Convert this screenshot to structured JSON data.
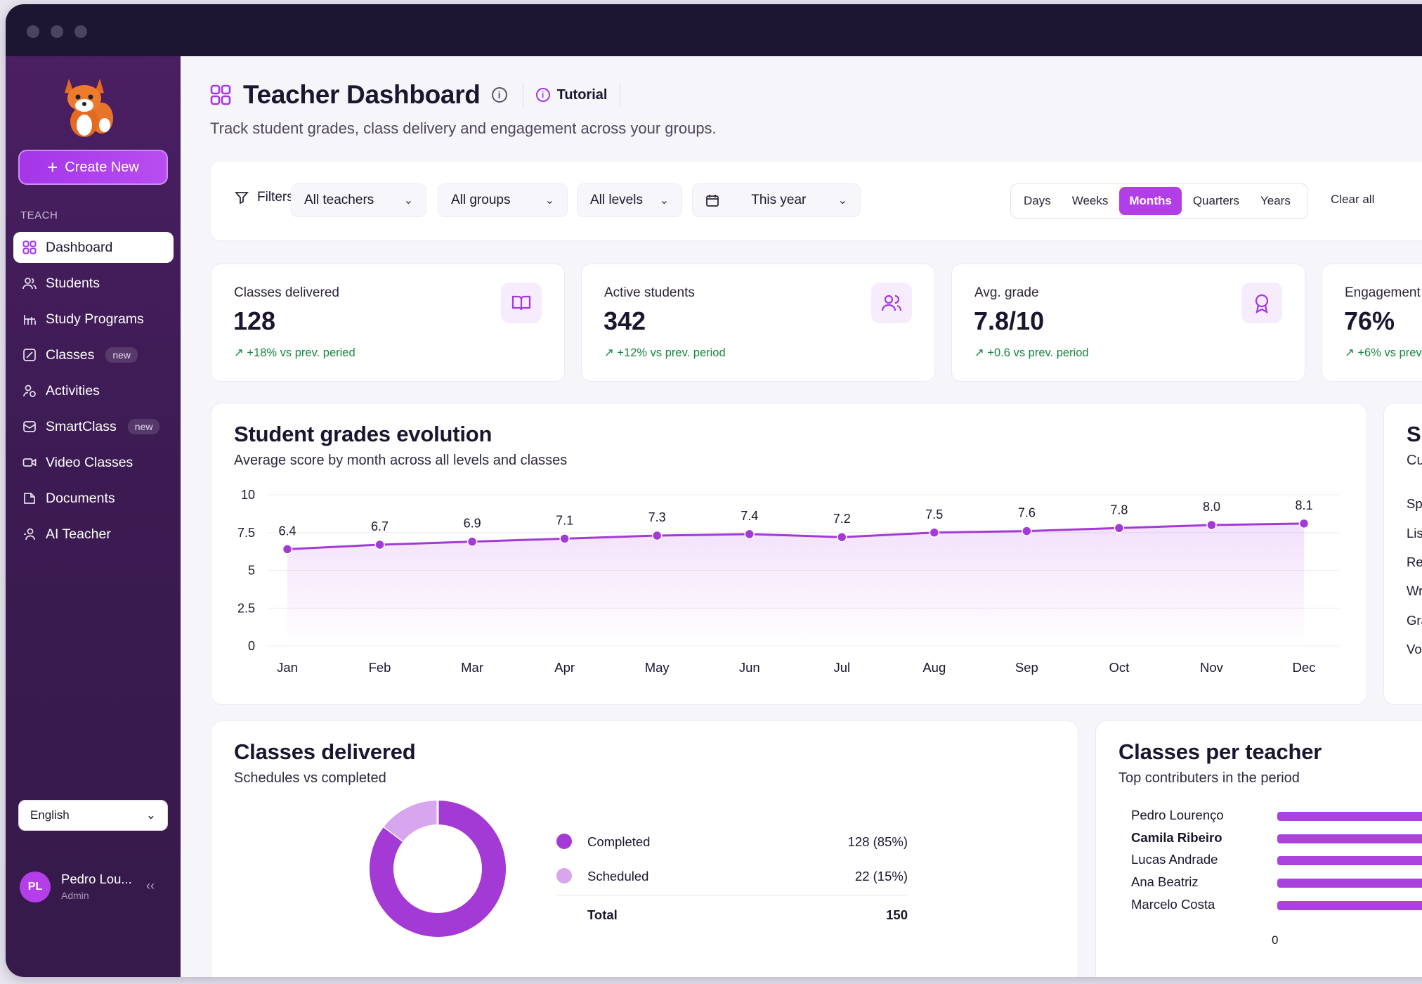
{
  "sidebar": {
    "create_label": "Create New",
    "section_label": "TEACH",
    "items": [
      {
        "label": "Dashboard"
      },
      {
        "label": "Students"
      },
      {
        "label": "Study Programs"
      },
      {
        "label": "Classes",
        "badge": "new"
      },
      {
        "label": "Activities"
      },
      {
        "label": "SmartClass",
        "badge": "new"
      },
      {
        "label": "Video Classes"
      },
      {
        "label": "Documents"
      },
      {
        "label": "AI Teacher"
      }
    ],
    "language": "English",
    "user": {
      "initials": "PL",
      "name": "Pedro Lou...",
      "role": "Admin"
    }
  },
  "header": {
    "title": "Teacher Dashboard",
    "tutorial_label": "Tutorial",
    "subtitle": "Track student grades, class delivery and engagement across your groups."
  },
  "filters": {
    "label": "Filters",
    "teachers": "All teachers",
    "groups": "All groups",
    "levels": "All levels",
    "period": "This year",
    "granularity": [
      "Days",
      "Weeks",
      "Months",
      "Quarters",
      "Years"
    ],
    "granularity_selected": "Months",
    "clear_label": "Clear all"
  },
  "kpis": [
    {
      "label": "Classes delivered",
      "value": "128",
      "delta": "↗ +18% vs prev. peried",
      "icon": "book-icon"
    },
    {
      "label": "Active students",
      "value": "342",
      "delta": "↗ +12% vs prev. period",
      "icon": "users-icon"
    },
    {
      "label": "Avg. grade",
      "value": "7.8/10",
      "delta": "↗ +0.6 vs prev. period",
      "icon": "award-icon"
    },
    {
      "label": "Engagement",
      "value": "76%",
      "delta": "↗ +6% vs prev",
      "icon": "engagement-icon"
    }
  ],
  "grades_card": {
    "title": "Student grades evolution",
    "subtitle": "Average score by month across all levels and classes"
  },
  "skills_card": {
    "title": "Sk",
    "subtitle": "Cu",
    "rows": [
      "Spe",
      "List",
      "Res",
      "Wri",
      "Gra",
      "Voc"
    ]
  },
  "classes_card": {
    "title": "Classes delivered",
    "subtitle": "Schedules vs completed",
    "legend": [
      {
        "name": "Completed",
        "value": "128 (85%)",
        "color": "#a43ad6"
      },
      {
        "name": "Scheduled",
        "value": "22 (15%)",
        "color": "#d8a6ef"
      }
    ],
    "total_label": "Total",
    "total_value": "150",
    "completed": 128,
    "scheduled": 22
  },
  "teachers_card": {
    "title": "Classes per teacher",
    "subtitle": "Top contributers in the period",
    "teachers": [
      "Pedro Lourenço",
      "Camila Ribeiro",
      "Lucas Andrade",
      "Ana Beatriz",
      "Marcelo Costa"
    ],
    "axis_start": "0"
  },
  "chart_data": {
    "type": "line",
    "title": "Student grades evolution",
    "subtitle": "Average score by month across all levels and classes",
    "categories": [
      "Jan",
      "Feb",
      "Mar",
      "Apr",
      "May",
      "Jun",
      "Jul",
      "Aug",
      "Sep",
      "Oct",
      "Nov",
      "Dec"
    ],
    "values": [
      6.4,
      6.7,
      6.9,
      7.1,
      7.3,
      7.4,
      7.2,
      7.5,
      7.6,
      7.8,
      8.0,
      8.1
    ],
    "ylim": [
      0,
      10
    ],
    "yticks": [
      "0",
      "2.5",
      "5",
      "7.5",
      "10"
    ],
    "grid": true,
    "color": "#a43ad6"
  }
}
